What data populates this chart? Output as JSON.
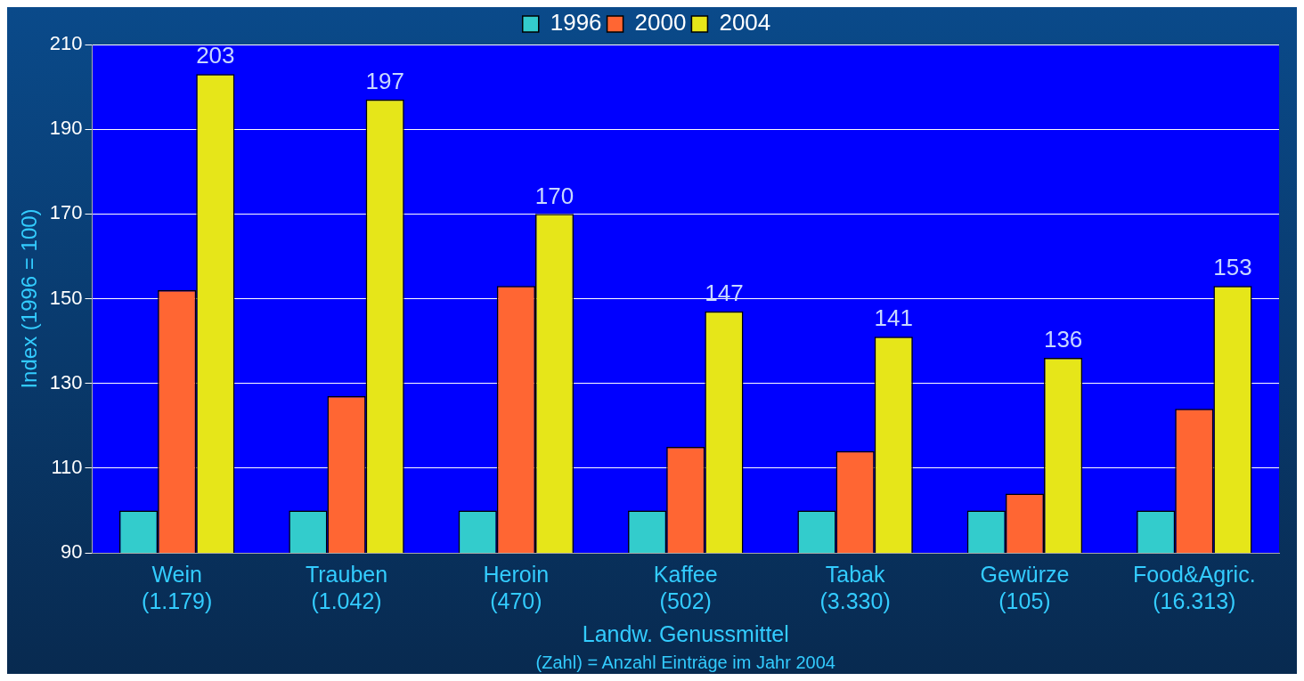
{
  "chart_data": {
    "type": "bar",
    "ylabel": "Index (1996 = 100)",
    "xlabel": "Landw. Genussmittel",
    "categories": [
      "Wein\n(1.179)",
      "Trauben\n(1.042)",
      "Heroin\n(470)",
      "Kaffee\n(502)",
      "Tabak\n(3.330)",
      "Gewürze\n(105)",
      "Food&Agric.\n(16.313)"
    ],
    "series": [
      {
        "name": "1996",
        "color": "#33cccc",
        "values": [
          100,
          100,
          100,
          100,
          100,
          100,
          100
        ]
      },
      {
        "name": "2000",
        "color": "#ff6633",
        "values": [
          152,
          127,
          153,
          115,
          114,
          104,
          124
        ]
      },
      {
        "name": "2004",
        "color": "#e6e619",
        "values": [
          203,
          197,
          170,
          147,
          141,
          136,
          153
        ],
        "value_labels": [
          "203",
          "197",
          "170",
          "147",
          "141",
          "136",
          "153"
        ]
      }
    ],
    "ylim": [
      90,
      210
    ],
    "yticks": [
      90,
      110,
      130,
      150,
      170,
      190,
      210
    ],
    "grid": "y",
    "legend": "top",
    "annotations": [
      "(Zahl) = Anzahl Einträge im Jahr 2004"
    ]
  }
}
